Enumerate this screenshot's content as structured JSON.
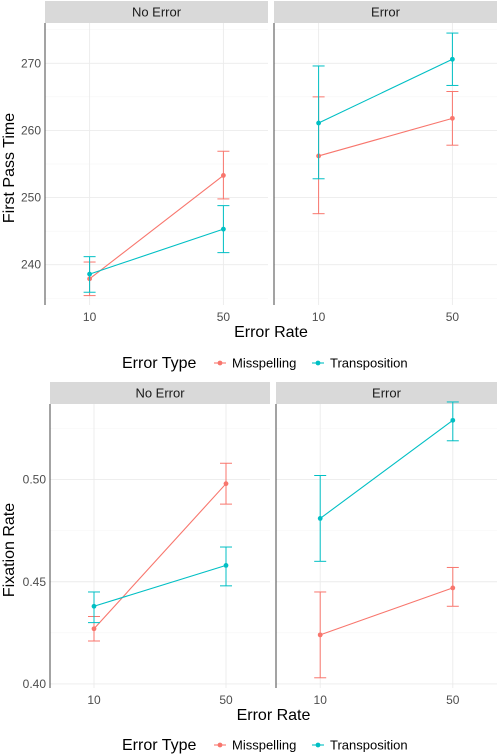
{
  "colors": {
    "Misspelling": "#F8766D",
    "Transposition": "#00BFC4"
  },
  "chart_data": [
    {
      "type": "line",
      "with_error_bars": true,
      "xlabel": "Error Rate",
      "ylabel": "First Pass Time",
      "ylim": [
        234,
        276
      ],
      "yticks": [
        240,
        250,
        260,
        270
      ],
      "categories": [
        "10",
        "50"
      ],
      "legend": {
        "title": "Error Type",
        "placement": "bottom",
        "entries": [
          "Misspelling",
          "Transposition"
        ]
      },
      "panels": [
        {
          "label": "No Error",
          "series": [
            {
              "name": "Misspelling",
              "values": [
                237.9,
                253.3
              ],
              "lower": [
                235.4,
                249.8
              ],
              "upper": [
                240.4,
                256.9
              ]
            },
            {
              "name": "Transposition",
              "values": [
                238.6,
                245.3
              ],
              "lower": [
                235.9,
                241.8
              ],
              "upper": [
                241.2,
                248.8
              ]
            }
          ]
        },
        {
          "label": "Error",
          "series": [
            {
              "name": "Misspelling",
              "values": [
                256.2,
                261.8
              ],
              "lower": [
                247.6,
                257.8
              ],
              "upper": [
                265.0,
                265.8
              ]
            },
            {
              "name": "Transposition",
              "values": [
                261.1,
                270.6
              ],
              "lower": [
                252.8,
                266.7
              ],
              "upper": [
                269.6,
                274.5
              ]
            }
          ]
        }
      ]
    },
    {
      "type": "line",
      "with_error_bars": true,
      "xlabel": "Error Rate",
      "ylabel": "Fixation Rate",
      "ylim": [
        0.398,
        0.537
      ],
      "yticks": [
        0.4,
        0.45,
        0.5
      ],
      "ytick_labels": [
        "0.40",
        "0.45",
        "0.50"
      ],
      "categories": [
        "10",
        "50"
      ],
      "legend": {
        "title": "Error Type",
        "placement": "bottom",
        "entries": [
          "Misspelling",
          "Transposition"
        ]
      },
      "panels": [
        {
          "label": "No Error",
          "series": [
            {
              "name": "Misspelling",
              "values": [
                0.427,
                0.498
              ],
              "lower": [
                0.421,
                0.488
              ],
              "upper": [
                0.433,
                0.508
              ]
            },
            {
              "name": "Transposition",
              "values": [
                0.438,
                0.458
              ],
              "lower": [
                0.43,
                0.448
              ],
              "upper": [
                0.445,
                0.467
              ]
            }
          ]
        },
        {
          "label": "Error",
          "series": [
            {
              "name": "Misspelling",
              "values": [
                0.424,
                0.447
              ],
              "lower": [
                0.403,
                0.438
              ],
              "upper": [
                0.445,
                0.457
              ]
            },
            {
              "name": "Transposition",
              "values": [
                0.481,
                0.529
              ],
              "lower": [
                0.46,
                0.519
              ],
              "upper": [
                0.502,
                0.538
              ]
            }
          ]
        }
      ]
    }
  ]
}
